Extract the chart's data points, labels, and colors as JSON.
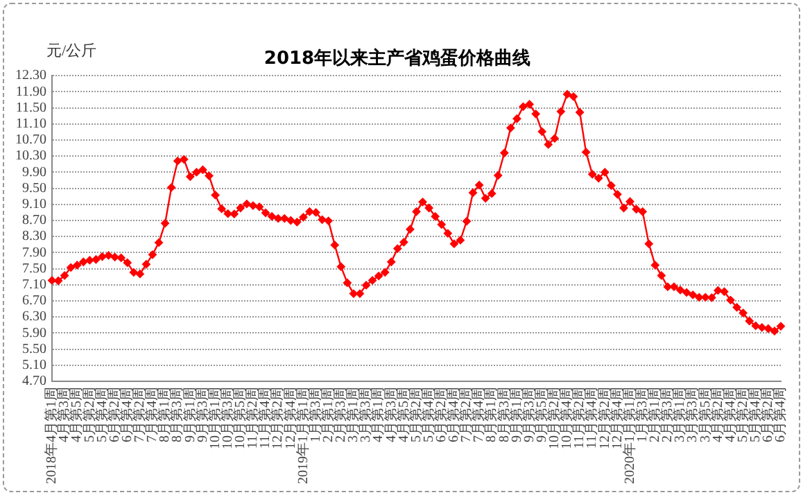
{
  "chart_data": {
    "type": "line",
    "title": "2018年以来主产省鸡蛋价格曲线",
    "ylabel": "元/公斤",
    "categories": [
      "2018年4月第1周",
      null,
      "4月第3周",
      null,
      "4月第5周",
      null,
      "5月第2周",
      null,
      "5月第4周",
      null,
      "6月第2周",
      null,
      "6月第4周",
      null,
      "7月第2周",
      null,
      "7月第4周",
      null,
      "8月第1周",
      null,
      "8月第3周",
      null,
      "9月第1周",
      null,
      "9月第3周",
      null,
      "10月第1周",
      null,
      "10月第3周",
      null,
      "10月第5周",
      null,
      "11月第2周",
      null,
      "11月第4周",
      null,
      "12月第2周",
      null,
      "12月第4周",
      null,
      "2019年1月第1周",
      null,
      "1月第3周",
      null,
      "2月第1周",
      null,
      "2月第3周",
      null,
      "3月第1周",
      null,
      "3月第3周",
      null,
      "4月第1周",
      null,
      "4月第3周",
      null,
      "4月第5周",
      null,
      "5月第2周",
      null,
      "5月第4周",
      null,
      "6月第2周",
      null,
      "6月第4周",
      null,
      "7月第2周",
      null,
      "7月第4周",
      null,
      "8月第1周",
      null,
      "8月第3周",
      null,
      "9月第1周",
      null,
      "9月第3周",
      null,
      "9月第5周",
      null,
      "10月第2周",
      null,
      "10月第4周",
      null,
      "11月第2周",
      null,
      "11月第4周",
      null,
      "12月第2周",
      null,
      "12月第4周",
      null,
      "2020年1月第1周",
      null,
      "1月第3周",
      null,
      "2月第1周",
      null,
      "2月第3周",
      null,
      "3月第1周",
      null,
      "3月第3周",
      null,
      "3月第5周",
      null,
      "4月第2周",
      null,
      "4月第4周",
      null,
      "5月第2周",
      null,
      "5月第4周",
      null,
      "6月第2周",
      null,
      "6月第4周"
    ],
    "series": [
      {
        "color": "#ff0000",
        "values": [
          7.21,
          7.2,
          7.33,
          7.53,
          7.59,
          7.67,
          7.71,
          7.73,
          7.8,
          7.83,
          7.79,
          7.77,
          7.65,
          7.41,
          7.37,
          7.61,
          7.85,
          8.15,
          8.63,
          9.52,
          10.18,
          10.22,
          9.79,
          9.9,
          9.96,
          9.81,
          9.33,
          8.99,
          8.87,
          8.86,
          9.01,
          9.11,
          9.07,
          9.04,
          8.89,
          8.8,
          8.75,
          8.75,
          8.7,
          8.66,
          8.78,
          8.92,
          8.9,
          8.72,
          8.69,
          8.09,
          7.55,
          7.15,
          6.88,
          6.88,
          7.09,
          7.21,
          7.32,
          7.41,
          7.67,
          8.0,
          8.16,
          8.48,
          8.92,
          9.16,
          9.01,
          8.8,
          8.6,
          8.38,
          8.12,
          8.21,
          8.68,
          9.39,
          9.58,
          9.25,
          9.37,
          9.82,
          10.38,
          11.0,
          11.23,
          11.53,
          11.59,
          11.35,
          10.91,
          10.59,
          10.74,
          11.41,
          11.84,
          11.78,
          11.39,
          10.4,
          9.85,
          9.75,
          9.9,
          9.57,
          9.35,
          9.01,
          9.17,
          8.98,
          8.92,
          8.12,
          7.59,
          7.33,
          7.05,
          7.05,
          6.97,
          6.91,
          6.85,
          6.79,
          6.79,
          6.78,
          6.96,
          6.93,
          6.72,
          6.54,
          6.4,
          6.2,
          6.08,
          6.04,
          6.01,
          5.95,
          6.07
        ]
      }
    ],
    "ylim": [
      4.7,
      12.3
    ],
    "yticks": [
      {
        "value": 4.7,
        "label": "4.70"
      },
      {
        "value": 5.1,
        "label": "5.10"
      },
      {
        "value": 5.5,
        "label": "5.50"
      },
      {
        "value": 5.9,
        "label": "5.90"
      },
      {
        "value": 6.3,
        "label": "6.30"
      },
      {
        "value": 6.7,
        "label": "6.70"
      },
      {
        "value": 7.1,
        "label": "7.10"
      },
      {
        "value": 7.5,
        "label": "7.50"
      },
      {
        "value": 7.9,
        "label": "7.90"
      },
      {
        "value": 8.3,
        "label": "8.30"
      },
      {
        "value": 8.7,
        "label": "8.70"
      },
      {
        "value": 9.1,
        "label": "9.10"
      },
      {
        "value": 9.5,
        "label": "9.50"
      },
      {
        "value": 9.9,
        "label": "9.90"
      },
      {
        "value": 10.3,
        "label": "10.30"
      },
      {
        "value": 10.7,
        "label": "10.70"
      },
      {
        "value": 11.1,
        "label": "11.10"
      },
      {
        "value": 11.5,
        "label": "11.50"
      },
      {
        "value": 11.9,
        "label": "11.90"
      },
      {
        "value": 12.3,
        "label": "12.30"
      }
    ],
    "grid": "y",
    "legend": false,
    "marker": "diamond",
    "line_style": "solid"
  }
}
